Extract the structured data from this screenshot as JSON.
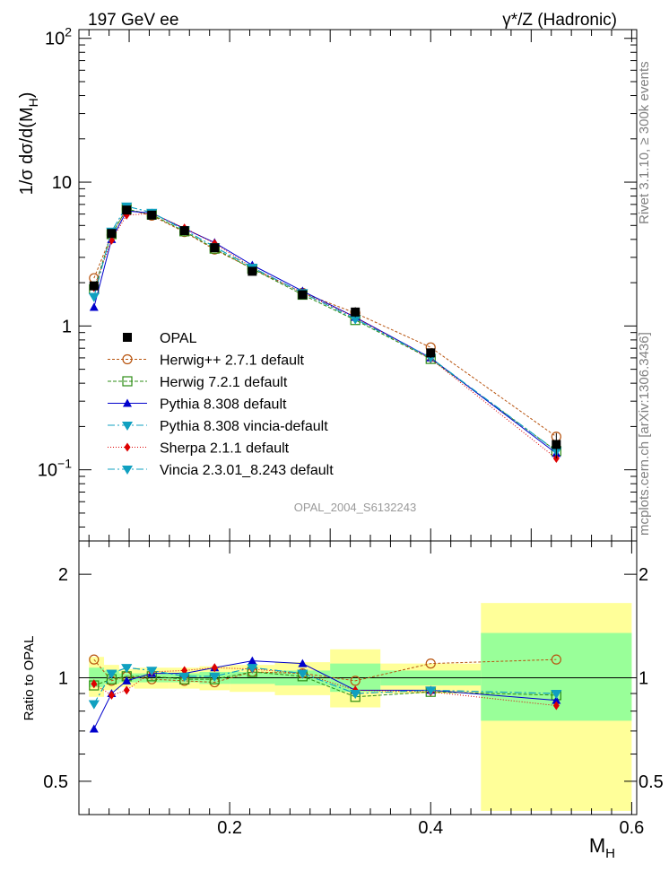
{
  "header": {
    "left": "197 GeV ee",
    "right": "γ*/Z (Hadronic)",
    "side_right_top": "Rivet 3.1.10, ≥ 300k events",
    "side_right_bottom": "mcplots.cern.ch [arXiv:1306.3436]",
    "watermark": "OPAL_2004_S6132243"
  },
  "chart_data": [
    {
      "type": "line",
      "panel": "main",
      "scale_y": "log",
      "title": "",
      "xlabel": "",
      "ylabel": "1/σ dσ/d(M",
      "ylabel_sub": "H",
      "ylabel_close": ")",
      "xlim": [
        0.05,
        0.605
      ],
      "ylim": [
        0.032,
        115
      ],
      "y_ticks": [
        {
          "value": 100,
          "label": "10",
          "sup": "2"
        },
        {
          "value": 10,
          "label": "10",
          "sup": ""
        },
        {
          "value": 1,
          "label": "1",
          "sup": ""
        },
        {
          "value": 0.1,
          "label": "10",
          "sup": "−1"
        }
      ],
      "x": [
        0.065,
        0.0825,
        0.0975,
        0.1225,
        0.155,
        0.185,
        0.2225,
        0.2725,
        0.325,
        0.4,
        0.525
      ],
      "series": [
        {
          "name": "OPAL",
          "style": "data",
          "color": "#000000",
          "marker": "square-filled",
          "dash": "",
          "values": [
            1.9,
            4.4,
            6.4,
            5.9,
            4.6,
            3.5,
            2.4,
            1.65,
            1.25,
            0.65,
            0.15
          ],
          "errors": [
            0.1,
            0.2,
            0.3,
            0.2,
            0.2,
            0.15,
            0.1,
            0.08,
            0.1,
            0.05,
            0.03
          ]
        },
        {
          "name": "Herwig++ 2.7.1 default",
          "color": "#b8540f",
          "marker": "circle-open",
          "dash": "3,2",
          "values": [
            2.15,
            4.3,
            6.5,
            5.85,
            4.5,
            3.4,
            2.5,
            1.7,
            1.23,
            0.71,
            0.17
          ]
        },
        {
          "name": "Herwig 7.2.1 default",
          "color": "#2c8c14",
          "marker": "square-open",
          "dash": "4,2",
          "values": [
            1.8,
            4.35,
            6.5,
            5.95,
            4.55,
            3.45,
            2.5,
            1.65,
            1.1,
            0.59,
            0.135
          ]
        },
        {
          "name": "Pythia 8.308 default",
          "color": "#0000cc",
          "marker": "triangle-up",
          "dash": "",
          "values": [
            1.35,
            4.0,
            6.3,
            6.1,
            4.75,
            3.8,
            2.65,
            1.75,
            1.15,
            0.6,
            0.13
          ]
        },
        {
          "name": "Pythia 8.308 vincia-default",
          "color": "#10a0c0",
          "marker": "triangle-down",
          "dash": "8,3,2,3",
          "values": [
            1.6,
            4.55,
            6.8,
            6.15,
            4.65,
            3.55,
            2.55,
            1.7,
            1.12,
            0.6,
            0.135
          ]
        },
        {
          "name": "Sherpa 2.1.1 default",
          "color": "#dd0000",
          "marker": "diamond",
          "dash": "1,2",
          "values": [
            1.85,
            3.95,
            5.9,
            6.05,
            4.8,
            3.75,
            2.55,
            1.7,
            1.15,
            0.59,
            0.12
          ]
        },
        {
          "name": "Vincia 2.3.01_8.243 default",
          "color": "#10a0c0",
          "marker": "triangle-down",
          "dash": "8,3,2,3",
          "values": [
            1.6,
            4.55,
            6.8,
            6.15,
            4.65,
            3.55,
            2.55,
            1.7,
            1.12,
            0.6,
            0.135
          ]
        }
      ]
    },
    {
      "type": "line",
      "panel": "ratio",
      "scale_y": "log",
      "title": "",
      "xlabel": "M",
      "xlabel_sub": "H",
      "ylabel": "Ratio to OPAL",
      "xlim": [
        0.05,
        0.605
      ],
      "ylim": [
        0.4,
        2.5
      ],
      "y_ticks": [
        {
          "value": 2,
          "label": "2"
        },
        {
          "value": 1,
          "label": "1"
        },
        {
          "value": 0.5,
          "label": "0.5"
        }
      ],
      "x_ticks": [
        {
          "value": 0.2,
          "label": "0.2"
        },
        {
          "value": 0.4,
          "label": "0.4"
        },
        {
          "value": 0.6,
          "label": "0.6"
        }
      ],
      "x": [
        0.065,
        0.0825,
        0.0975,
        0.1225,
        0.155,
        0.185,
        0.2225,
        0.2725,
        0.325,
        0.4,
        0.525
      ],
      "bands": [
        {
          "x_min": 0.06,
          "x_max": 0.075,
          "green": [
            0.94,
            1.07
          ],
          "yellow": [
            0.88,
            1.15
          ]
        },
        {
          "x_min": 0.075,
          "x_max": 0.09,
          "green": [
            0.96,
            1.05
          ],
          "yellow": [
            0.92,
            1.09
          ]
        },
        {
          "x_min": 0.09,
          "x_max": 0.105,
          "green": [
            0.97,
            1.03
          ],
          "yellow": [
            0.94,
            1.06
          ]
        },
        {
          "x_min": 0.105,
          "x_max": 0.14,
          "green": [
            0.97,
            1.03
          ],
          "yellow": [
            0.93,
            1.07
          ]
        },
        {
          "x_min": 0.14,
          "x_max": 0.17,
          "green": [
            0.97,
            1.03
          ],
          "yellow": [
            0.93,
            1.07
          ]
        },
        {
          "x_min": 0.17,
          "x_max": 0.2,
          "green": [
            0.96,
            1.04
          ],
          "yellow": [
            0.92,
            1.08
          ]
        },
        {
          "x_min": 0.2,
          "x_max": 0.245,
          "green": [
            0.96,
            1.04
          ],
          "yellow": [
            0.91,
            1.09
          ]
        },
        {
          "x_min": 0.245,
          "x_max": 0.3,
          "green": [
            0.95,
            1.05
          ],
          "yellow": [
            0.89,
            1.11
          ]
        },
        {
          "x_min": 0.3,
          "x_max": 0.35,
          "green": [
            0.91,
            1.1
          ],
          "yellow": [
            0.82,
            1.21
          ]
        },
        {
          "x_min": 0.35,
          "x_max": 0.45,
          "green": [
            0.95,
            1.05
          ],
          "yellow": [
            0.9,
            1.1
          ]
        },
        {
          "x_min": 0.45,
          "x_max": 0.6,
          "green": [
            0.75,
            1.35
          ],
          "yellow": [
            0.41,
            1.65
          ]
        }
      ],
      "series": [
        {
          "name": "Herwig++ 2.7.1 default",
          "color": "#b8540f",
          "marker": "circle-open",
          "dash": "3,2",
          "values": [
            1.13,
            0.98,
            1.01,
            0.99,
            0.98,
            0.97,
            1.04,
            1.03,
            0.98,
            1.1,
            1.13
          ]
        },
        {
          "name": "Herwig 7.2.1 default",
          "color": "#2c8c14",
          "marker": "square-open",
          "dash": "4,2",
          "values": [
            0.95,
            0.99,
            1.01,
            1.01,
            0.99,
            0.99,
            1.04,
            1.01,
            0.88,
            0.91,
            0.89
          ]
        },
        {
          "name": "Pythia 8.308 default",
          "color": "#0000cc",
          "marker": "triangle-up",
          "dash": "",
          "values": [
            0.71,
            0.9,
            0.98,
            1.03,
            1.03,
            1.07,
            1.12,
            1.1,
            0.92,
            0.92,
            0.86
          ]
        },
        {
          "name": "Pythia 8.308 vincia-default",
          "color": "#10a0c0",
          "marker": "triangle-down",
          "dash": "8,3,2,3",
          "values": [
            0.84,
            1.03,
            1.07,
            1.05,
            1.01,
            1.01,
            1.07,
            1.03,
            0.9,
            0.92,
            0.9
          ]
        },
        {
          "name": "Sherpa 2.1.1 default",
          "color": "#dd0000",
          "marker": "diamond",
          "dash": "1,2",
          "values": [
            0.96,
            0.89,
            0.92,
            1.04,
            1.05,
            1.07,
            1.06,
            1.03,
            0.92,
            0.91,
            0.83
          ]
        },
        {
          "name": "Vincia 2.3.01_8.243 default",
          "color": "#10a0c0",
          "marker": "triangle-down",
          "dash": "8,3,2,3",
          "values": [
            0.84,
            1.03,
            1.07,
            1.05,
            1.01,
            1.01,
            1.07,
            1.03,
            0.9,
            0.92,
            0.9
          ]
        }
      ]
    }
  ]
}
